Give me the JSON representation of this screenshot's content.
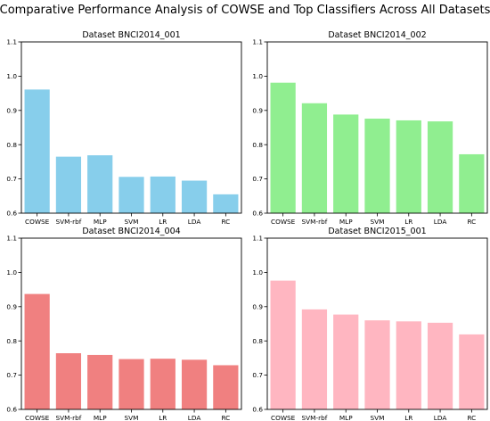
{
  "figure": {
    "title": "Comparative Performance Analysis of COWSE and Top Classifiers Across All Datasets"
  },
  "chart_data": [
    {
      "type": "bar",
      "title": "Dataset BNCI2014_001",
      "categories": [
        "COWSE",
        "SVM-rbf",
        "MLP",
        "SVM",
        "LR",
        "LDA",
        "RC"
      ],
      "values": [
        0.961,
        0.765,
        0.769,
        0.706,
        0.707,
        0.695,
        0.655
      ],
      "color": "#87CEEB",
      "ylim": [
        0.6,
        1.1
      ],
      "yticks": [
        "0.6",
        "0.7",
        "0.8",
        "0.9",
        "1.0",
        "1.1"
      ],
      "xlabel": "",
      "ylabel": "",
      "grid": false
    },
    {
      "type": "bar",
      "title": "Dataset BNCI2014_002",
      "categories": [
        "COWSE",
        "SVM-rbf",
        "MLP",
        "SVM",
        "LR",
        "LDA",
        "RC"
      ],
      "values": [
        0.981,
        0.921,
        0.888,
        0.876,
        0.871,
        0.868,
        0.772
      ],
      "color": "#90EE90",
      "ylim": [
        0.6,
        1.1
      ],
      "yticks": [
        "0.6",
        "0.7",
        "0.8",
        "0.9",
        "1.0",
        "1.1"
      ],
      "xlabel": "",
      "ylabel": "",
      "grid": false
    },
    {
      "type": "bar",
      "title": "Dataset BNCI2014_004",
      "categories": [
        "COWSE",
        "SVM-rbf",
        "MLP",
        "SVM",
        "LR",
        "LDA",
        "RC"
      ],
      "values": [
        0.937,
        0.764,
        0.759,
        0.747,
        0.748,
        0.745,
        0.729
      ],
      "color": "#F08080",
      "ylim": [
        0.6,
        1.1
      ],
      "yticks": [
        "0.6",
        "0.7",
        "0.8",
        "0.9",
        "1.0",
        "1.1"
      ],
      "xlabel": "",
      "ylabel": "",
      "grid": false
    },
    {
      "type": "bar",
      "title": "Dataset BNCI2015_001",
      "categories": [
        "COWSE",
        "SVM-rbf",
        "MLP",
        "SVM",
        "LR",
        "LDA",
        "RC"
      ],
      "values": [
        0.976,
        0.892,
        0.877,
        0.86,
        0.857,
        0.853,
        0.819
      ],
      "color": "#FFB6C1",
      "ylim": [
        0.6,
        1.1
      ],
      "yticks": [
        "0.6",
        "0.7",
        "0.8",
        "0.9",
        "1.0",
        "1.1"
      ],
      "xlabel": "",
      "ylabel": "",
      "grid": false
    }
  ]
}
